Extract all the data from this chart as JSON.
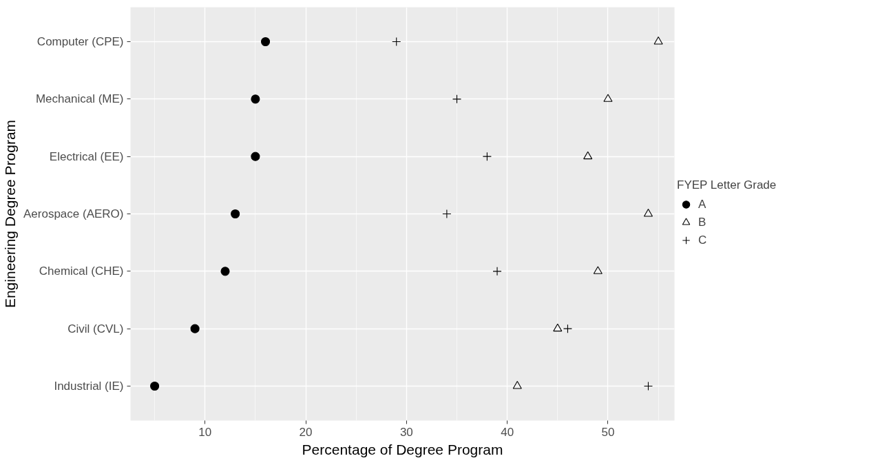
{
  "chart_data": {
    "type": "scatter",
    "xlabel": "Percentage of Degree Program",
    "ylabel": "Engineering Degree Program",
    "legend_title": "FYEP Letter Grade",
    "legend": "right",
    "grid": true,
    "orientation": "horizontal",
    "categories": [
      "Computer (CPE)",
      "Mechanical (ME)",
      "Electrical (EE)",
      "Aerospace (AERO)",
      "Chemical (CHE)",
      "Civil (CVL)",
      "Industrial (IE)"
    ],
    "xlim": [
      2.6,
      56.6
    ],
    "xticks": [
      10,
      20,
      30,
      40,
      50
    ],
    "series": [
      {
        "name": "A",
        "color": "#000000",
        "marker": "circle",
        "values": [
          16,
          15,
          15,
          13,
          12,
          9,
          5
        ]
      },
      {
        "name": "B",
        "color": "#000000",
        "marker": "triangle",
        "values": [
          55,
          50,
          48,
          54,
          49,
          45,
          41
        ]
      },
      {
        "name": "C",
        "color": "#000000",
        "marker": "cross",
        "values": [
          29,
          35,
          38,
          34,
          39,
          46,
          54
        ]
      }
    ]
  }
}
